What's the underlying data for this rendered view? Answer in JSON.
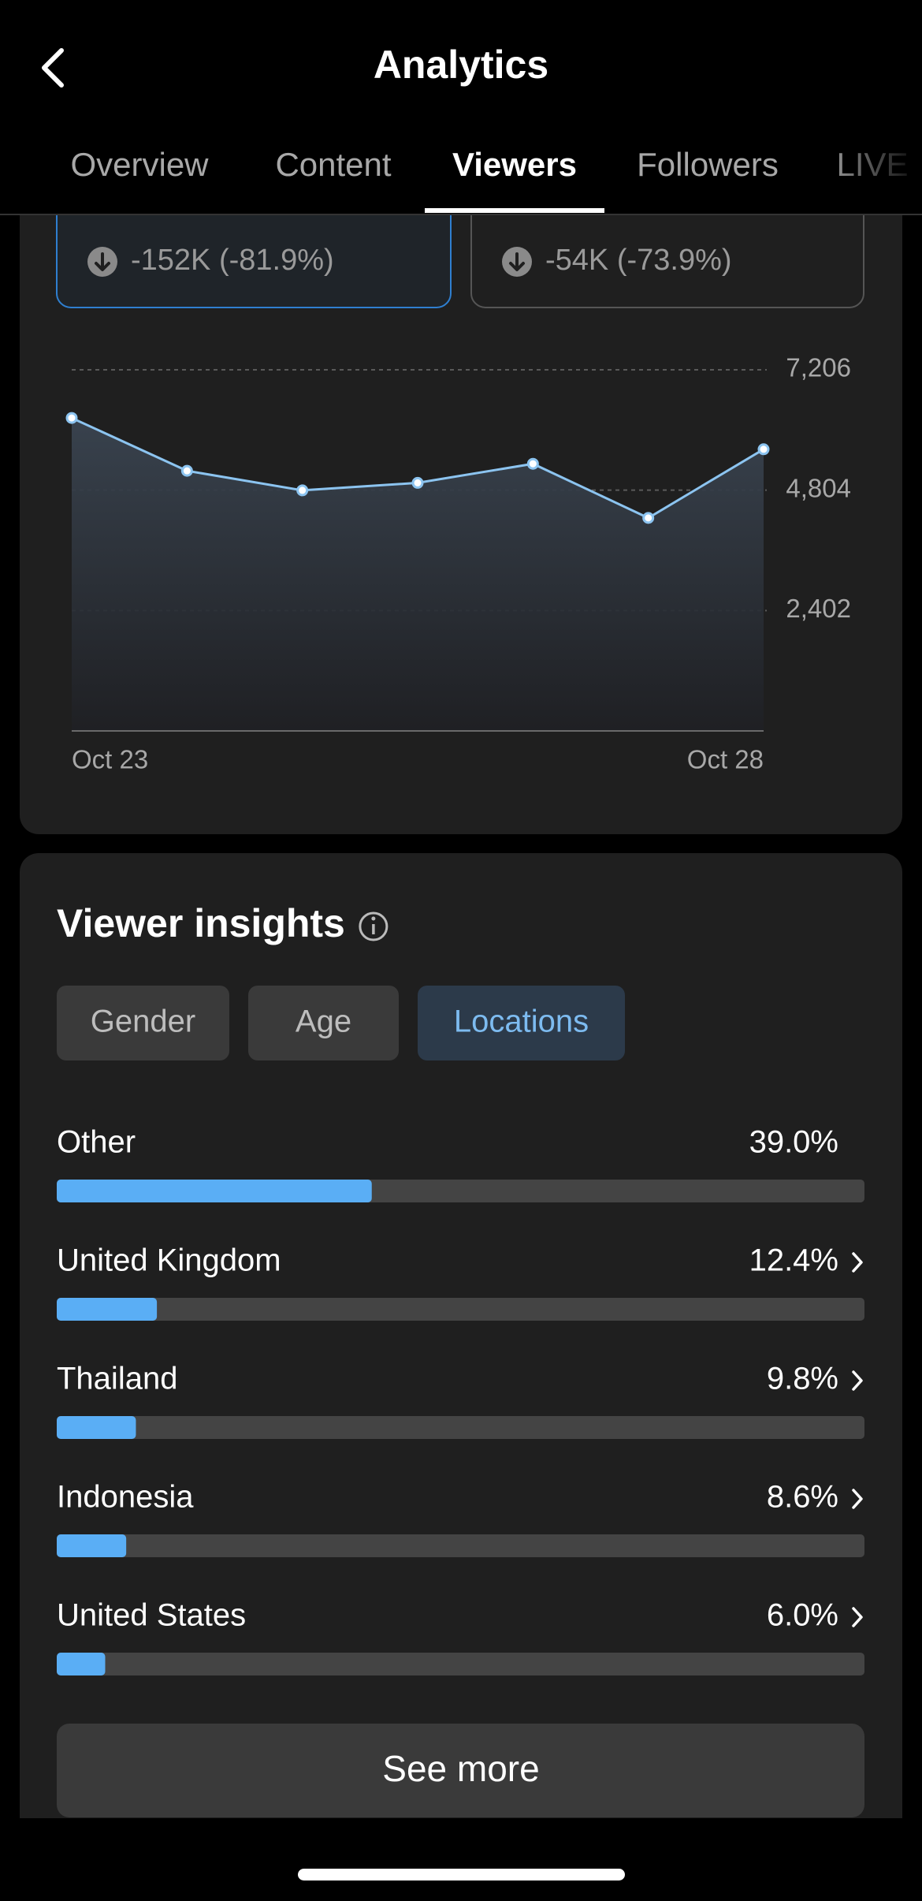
{
  "header": {
    "title": "Analytics"
  },
  "tabs": {
    "items": [
      "Overview",
      "Content",
      "Viewers",
      "Followers",
      "LIVE"
    ],
    "active": 2
  },
  "stat_cards": [
    {
      "change": "-152K (-81.9%)",
      "selected": true
    },
    {
      "change": "-54K (-73.9%)",
      "selected": false
    }
  ],
  "chart_data": {
    "type": "line",
    "categories": [
      "Oct 23",
      null,
      null,
      null,
      null,
      null,
      "Oct 28"
    ],
    "values": [
      6245,
      5190,
      4800,
      4950,
      5330,
      4250,
      5620
    ],
    "color": "#8cc4f0",
    "ylim": [
      0,
      7206
    ],
    "yticks": [
      {
        "value": 2402,
        "label": "2,402"
      },
      {
        "value": 4804,
        "label": "4,804"
      },
      {
        "value": 7206,
        "label": "7,206"
      }
    ],
    "grid": true
  },
  "insights": {
    "title": "Viewer insights",
    "tabs": [
      "Gender",
      "Age",
      "Locations"
    ],
    "active_tab": 2,
    "locations": {
      "xlim": [
        0,
        100
      ],
      "color": "#5aaef5",
      "items": [
        {
          "name": "Other",
          "value": 39.0,
          "value_label": "39.0%",
          "chevron": false
        },
        {
          "name": "United Kingdom",
          "value": 12.4,
          "value_label": "12.4%",
          "chevron": true
        },
        {
          "name": "Thailand",
          "value": 9.8,
          "value_label": "9.8%",
          "chevron": true
        },
        {
          "name": "Indonesia",
          "value": 8.6,
          "value_label": "8.6%",
          "chevron": true
        },
        {
          "name": "United States",
          "value": 6.0,
          "value_label": "6.0%",
          "chevron": true
        }
      ]
    },
    "button": "See more"
  }
}
